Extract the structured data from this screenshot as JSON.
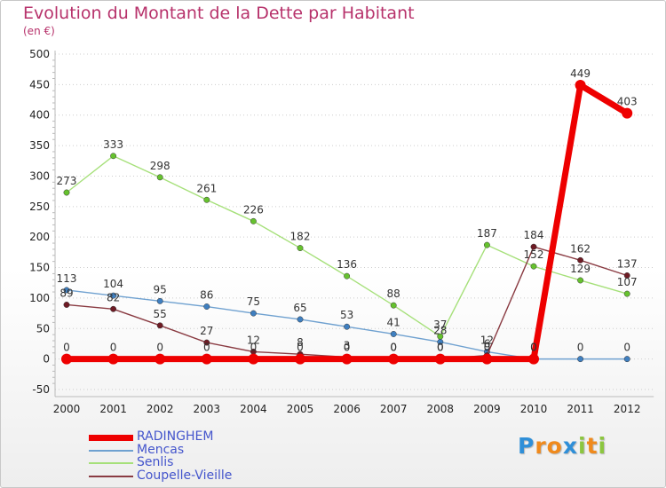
{
  "chart_data": {
    "type": "line",
    "title": "Evolution du Montant de la Dette par Habitant",
    "subtitle": "(en €)",
    "xlabel": "",
    "ylabel": "",
    "ylim": [
      -50,
      500
    ],
    "yticks": [
      -50,
      0,
      50,
      100,
      150,
      200,
      250,
      300,
      350,
      400,
      450,
      500
    ],
    "categories": [
      "2000",
      "2001",
      "2002",
      "2003",
      "2004",
      "2005",
      "2006",
      "2007",
      "2008",
      "2009",
      "2010",
      "2011",
      "2012"
    ],
    "grid": "horizontal-dashed",
    "legend_position": "bottom-left",
    "series": [
      {
        "name": "Mencas",
        "color": "#6fa1d0",
        "marker_color": "#3f7fc0",
        "values": [
          113,
          104,
          95,
          86,
          75,
          65,
          53,
          41,
          28,
          12,
          0,
          0,
          0
        ],
        "labels": [
          "113",
          "104",
          "95",
          "86",
          "75",
          "65",
          "53",
          "41",
          "28",
          "12",
          "0",
          "0",
          "0"
        ]
      },
      {
        "name": "Senlis",
        "color": "#a6e07a",
        "marker_color": "#66c22e",
        "values": [
          273,
          333,
          298,
          261,
          226,
          182,
          136,
          88,
          37,
          187,
          152,
          129,
          107
        ],
        "labels": [
          "273",
          "333",
          "298",
          "261",
          "226",
          "182",
          "136",
          "88",
          "37",
          "187",
          "152",
          "129",
          "107"
        ]
      },
      {
        "name": "Coupelle-Vieille",
        "color": "#8a3b42",
        "marker_color": "#6e1b24",
        "values": [
          89,
          82,
          55,
          27,
          12,
          8,
          3,
          0,
          0,
          6,
          184,
          162,
          137
        ],
        "labels": [
          "89",
          "82",
          "55",
          "27",
          "12",
          "8",
          "3",
          "0",
          "0",
          "6",
          "184",
          "162",
          "137"
        ]
      },
      {
        "name": "RADINGHEM",
        "color": "#ee0000",
        "marker_color": "#ee0000",
        "values": [
          0,
          0,
          0,
          0,
          0,
          0,
          0,
          0,
          0,
          0,
          0,
          449,
          403
        ],
        "labels": [
          "0",
          "0",
          "0",
          "0",
          "0",
          "0",
          "0",
          "0",
          "0",
          "0",
          "0",
          "449",
          "403"
        ]
      }
    ],
    "legend_order": [
      "RADINGHEM",
      "Mencas",
      "Senlis",
      "Coupelle-Vieille"
    ]
  },
  "colors": {
    "title": "#b7326b",
    "legend_text": "#4455cc",
    "axis": "#bbbbbb",
    "grid": "#cccccc",
    "tick_text": "#222222",
    "value_text": "#333333"
  },
  "logo": {
    "text": "Proxiti",
    "letters": [
      {
        "ch": "P",
        "color": "#2f8fd8"
      },
      {
        "ch": "r",
        "color": "#f08a1c"
      },
      {
        "ch": "o",
        "color": "#f08a1c"
      },
      {
        "ch": "x",
        "color": "#2f8fd8"
      },
      {
        "ch": "i",
        "color": "#8cc63f"
      },
      {
        "ch": "t",
        "color": "#f08a1c"
      },
      {
        "ch": "i",
        "color": "#8cc63f"
      }
    ]
  }
}
